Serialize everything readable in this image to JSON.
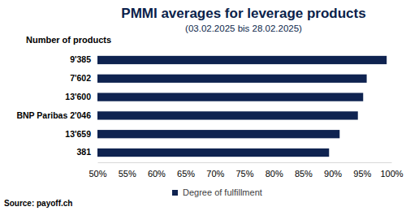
{
  "chart_data": {
    "type": "bar",
    "orientation": "horizontal",
    "title": "PMMI averages for leverage products",
    "subtitle": "(03.02.2025 bis 28.02.2025)",
    "ylabel": "Number of products",
    "source": "Source: payoff.ch",
    "categories": [
      "9'385",
      "7'602",
      "13'600",
      "BNP Paribas 2'046",
      "13'659",
      "381"
    ],
    "series": [
      {
        "name": "Degree of fulfillment",
        "color": "#0f2350",
        "values": [
          99.2,
          95.8,
          95.2,
          94.3,
          91.2,
          89.4
        ]
      }
    ],
    "xlim": [
      50,
      100
    ],
    "xticks": [
      {
        "value": 50,
        "label": "50%"
      },
      {
        "value": 55,
        "label": "55%"
      },
      {
        "value": 60,
        "label": "60%"
      },
      {
        "value": 65,
        "label": "65%"
      },
      {
        "value": 70,
        "label": "70%"
      },
      {
        "value": 75,
        "label": "75%"
      },
      {
        "value": 80,
        "label": "80%"
      },
      {
        "value": 85,
        "label": "85%"
      },
      {
        "value": 90,
        "label": "90%"
      },
      {
        "value": 95,
        "label": "95%"
      },
      {
        "value": 100,
        "label": "100%"
      }
    ],
    "grid": false,
    "legend": "bottom"
  }
}
